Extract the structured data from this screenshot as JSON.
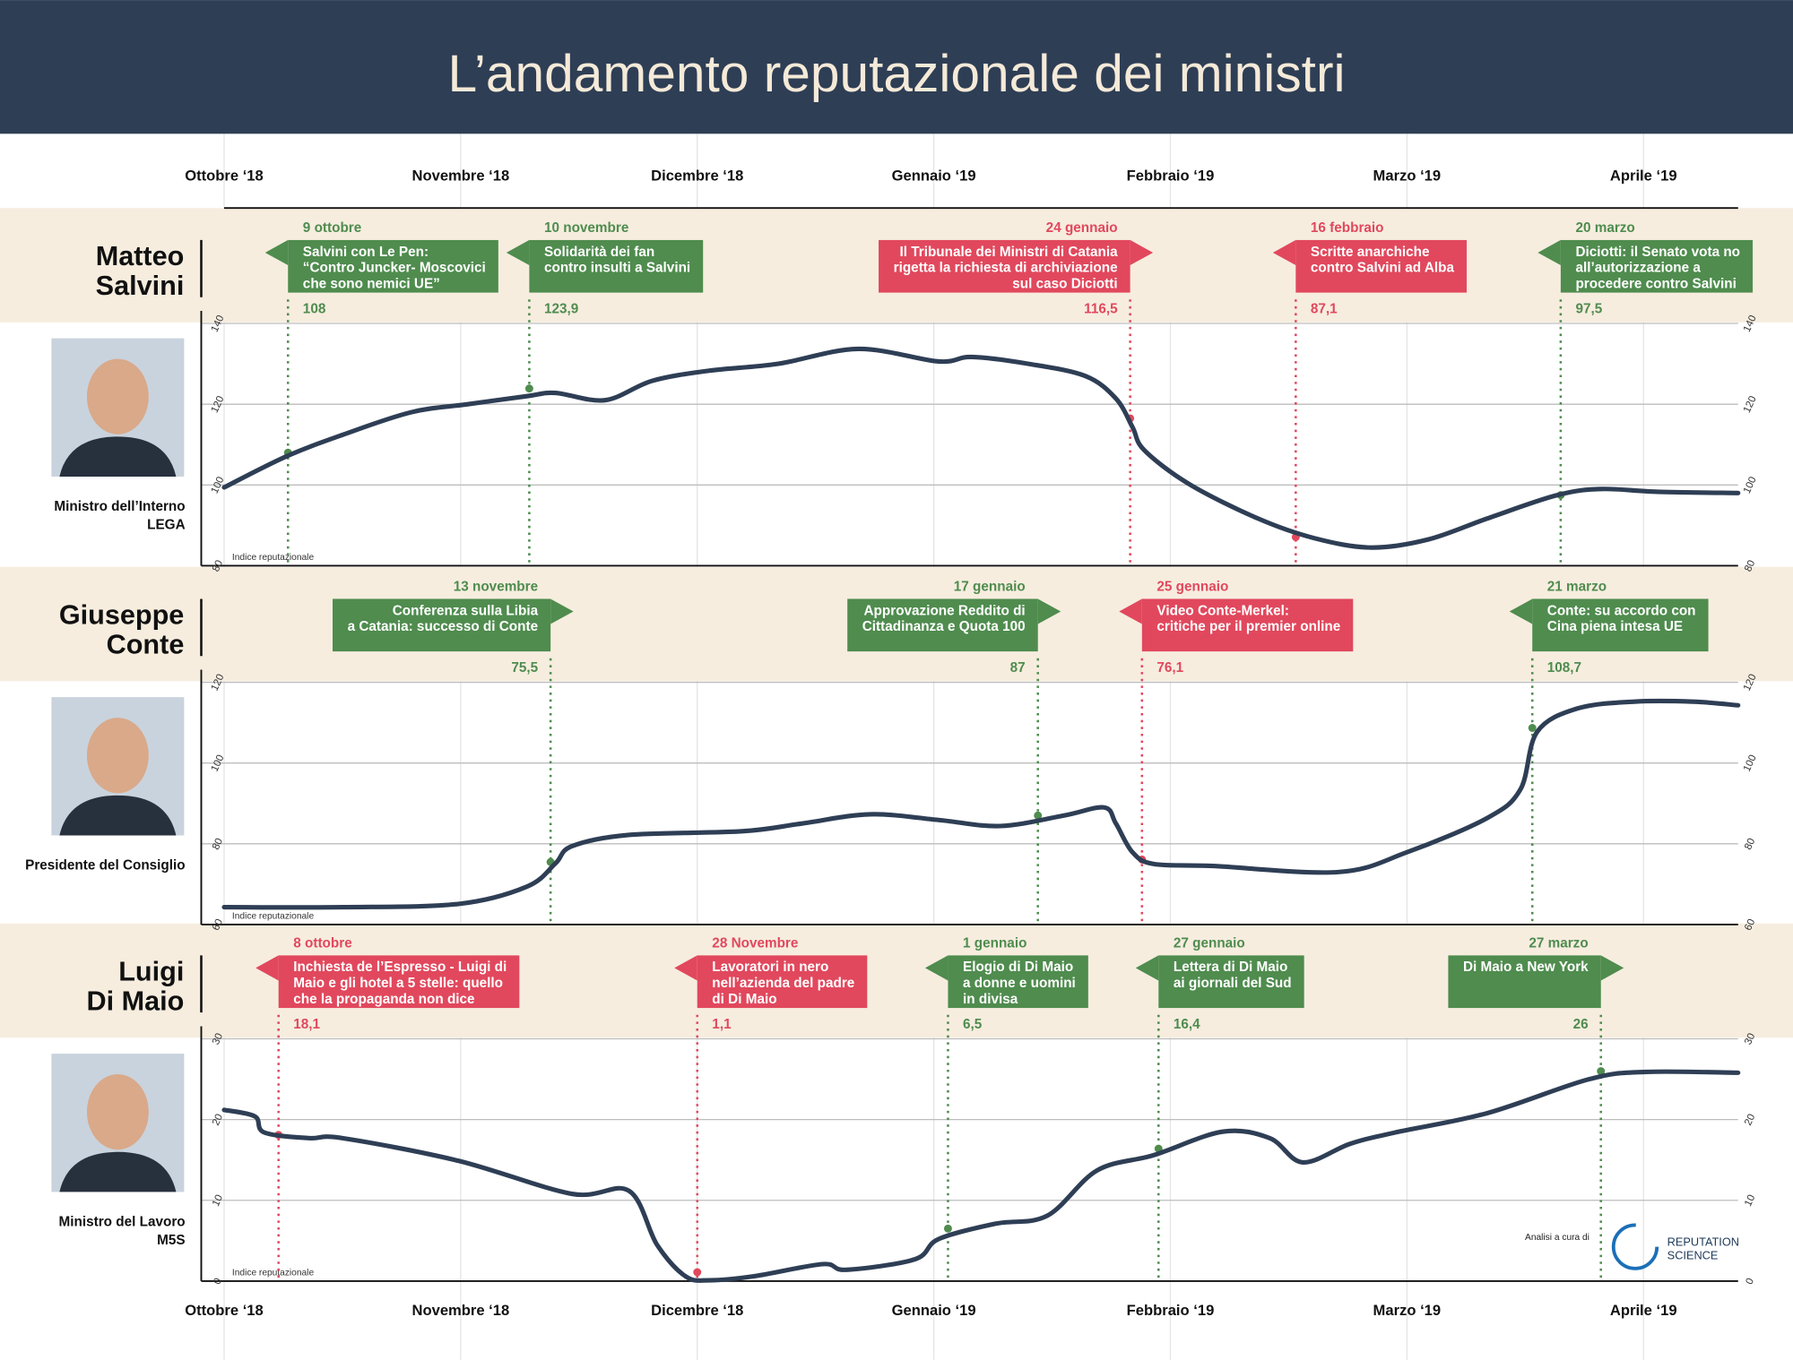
{
  "title": "L’andamento reputazionale dei ministri",
  "credit": "Analisi a cura di",
  "logo": [
    "REPUTATION",
    "SCIENCE"
  ],
  "chart_data": [
    {
      "type": "line",
      "title": [
        "Matteo",
        "Salvini"
      ],
      "subtitle": [
        "Ministro dell’Interno",
        "LEGA"
      ],
      "ylabel": "Indice reputazionale",
      "color": "#2e3e55",
      "x": [
        0,
        0.26,
        0.5,
        0.79,
        1.03,
        1.28,
        1.4,
        1.61,
        1.81,
        2.05,
        2.34,
        2.68,
        3.02,
        3.16,
        3.4,
        3.64,
        3.77,
        3.84,
        3.89,
        4.08,
        4.37,
        4.61,
        4.85,
        5.09,
        5.34,
        5.63,
        5.82,
        6.06,
        6.4
      ],
      "values": [
        99.4,
        107,
        112.4,
        118,
        120,
        122,
        122.8,
        121,
        125.8,
        128.3,
        130,
        133.7,
        130.6,
        131.7,
        130,
        127,
        121.4,
        114.3,
        108.6,
        100.2,
        91.7,
        86.8,
        84.5,
        86.5,
        91.7,
        97.4,
        99,
        98.3,
        98
      ],
      "xlim": [
        0,
        6.4
      ],
      "xticks": [
        {
          "value": 0,
          "label": "Ottobre ‘18"
        },
        {
          "value": 1,
          "label": "Novembre ‘18"
        },
        {
          "value": 2,
          "label": "Dicembre ‘18"
        },
        {
          "value": 3,
          "label": "Gennaio ‘19"
        },
        {
          "value": 4,
          "label": "Febbraio ‘19"
        },
        {
          "value": 5,
          "label": "Marzo ‘19"
        },
        {
          "value": 6,
          "label": "Aprile ‘19"
        }
      ],
      "ylim": [
        80,
        140
      ],
      "yticks": [
        80,
        100,
        120,
        140
      ],
      "grid": true,
      "annotations": [
        {
          "date": "9 ottobre",
          "text": [
            "Salvini con Le Pen:",
            "“Contro Juncker- Moscovici",
            "che sono nemici UE”"
          ],
          "x": 0.27,
          "value": 108,
          "color": "#4f8c4e",
          "align": "right"
        },
        {
          "date": "10 novembre",
          "text": [
            "Solidarità dei fan",
            "contro insulti a Salvini"
          ],
          "x": 1.29,
          "value": 123.9,
          "value_label": "123,9",
          "color": "#4f8c4e",
          "align": "right"
        },
        {
          "date": "24 gennaio",
          "text": [
            "Il Tribunale dei Ministri di Catania",
            "rigetta la richiesta di archiviazione",
            "sul caso Diciotti"
          ],
          "x": 3.83,
          "value": 116.5,
          "value_label": "116,5",
          "color": "#e1485d",
          "align": "left"
        },
        {
          "date": "16 febbraio",
          "text": [
            "Scritte anarchiche",
            "contro Salvini ad Alba"
          ],
          "x": 4.53,
          "value": 87.1,
          "value_label": "87,1",
          "color": "#e1485d",
          "align": "right"
        },
        {
          "date": "20 marzo",
          "text": [
            "Diciotti: il Senato vota no",
            "all’autorizzazione a",
            "procedere contro Salvini"
          ],
          "x": 5.65,
          "value": 97.5,
          "value_label": "97,5",
          "color": "#4f8c4e",
          "align": "right"
        }
      ]
    },
    {
      "type": "line",
      "title": [
        "Giuseppe",
        "Conte"
      ],
      "subtitle": [
        "Presidente del Consiglio"
      ],
      "ylabel": "Indice reputazionale",
      "color": "#2e3e55",
      "x": [
        0,
        0.5,
        0.99,
        1.28,
        1.4,
        1.47,
        1.71,
        2.19,
        2.44,
        2.73,
        3.02,
        3.28,
        3.55,
        3.72,
        3.77,
        3.84,
        3.93,
        4.18,
        4.71,
        5.0,
        5.34,
        5.48,
        5.55,
        5.72,
        5.96,
        6.21,
        6.4
      ],
      "values": [
        64.3,
        64.3,
        65.1,
        69.4,
        75.1,
        79.4,
        82.2,
        83.1,
        85,
        87.3,
        85.9,
        84.4,
        87,
        89,
        85,
        77.9,
        75,
        74.5,
        73,
        77.9,
        86.4,
        93.5,
        107.7,
        113.5,
        115.2,
        115.2,
        114.3
      ],
      "xlim": [
        0,
        6.4
      ],
      "ylim": [
        60,
        120
      ],
      "yticks": [
        60,
        80,
        100,
        120
      ],
      "grid": true,
      "annotations": [
        {
          "date": "13 novembre",
          "text": [
            "Conferenza sulla Libia",
            "a Catania: successo di Conte"
          ],
          "x": 1.38,
          "value": 75.5,
          "value_label": "75,5",
          "color": "#4f8c4e",
          "align": "left"
        },
        {
          "date": "17 gennaio",
          "text": [
            "Approvazione Reddito di",
            "Cittadinanza e Quota 100"
          ],
          "x": 3.44,
          "value": 87,
          "color": "#4f8c4e",
          "align": "left"
        },
        {
          "date": "25 gennaio",
          "text": [
            "Video Conte-Merkel:",
            "critiche per il premier online"
          ],
          "x": 3.88,
          "value": 76.1,
          "value_label": "76,1",
          "color": "#e1485d",
          "align": "right"
        },
        {
          "date": "21 marzo",
          "text": [
            "Conte: su accordo con",
            "Cina piena intesa UE"
          ],
          "x": 5.53,
          "value": 108.7,
          "value_label": "108,7",
          "color": "#4f8c4e",
          "align": "right"
        }
      ]
    },
    {
      "type": "line",
      "title": [
        "Luigi",
        "Di Maio"
      ],
      "subtitle": [
        "Ministro del Lavoro",
        "M5S"
      ],
      "ylabel": "Indice reputazionale",
      "color": "#2e3e55",
      "x": [
        0,
        0.13,
        0.17,
        0.36,
        0.5,
        0.99,
        1.47,
        1.71,
        1.83,
        1.95,
        2.05,
        2.24,
        2.53,
        2.63,
        2.92,
        3.02,
        3.26,
        3.48,
        3.69,
        3.93,
        4.22,
        4.42,
        4.56,
        4.76,
        4.95,
        5.34,
        5.77,
        6.01,
        6.4
      ],
      "values": [
        21.2,
        20.4,
        18.4,
        17.7,
        17.7,
        14.9,
        10.8,
        11.2,
        4.5,
        0.6,
        0.1,
        0.6,
        2.1,
        1.4,
        2.7,
        5.2,
        7.1,
        8.1,
        13.7,
        15.6,
        18.5,
        17.7,
        14.7,
        17,
        18.4,
        20.8,
        25,
        25.9,
        25.8
      ],
      "xlim": [
        0,
        6.4
      ],
      "xticks": [
        {
          "value": 0,
          "label": "Ottobre ‘18"
        },
        {
          "value": 1,
          "label": "Novembre ‘18"
        },
        {
          "value": 2,
          "label": "Dicembre ‘18"
        },
        {
          "value": 3,
          "label": "Gennaio ‘19"
        },
        {
          "value": 4,
          "label": "Febbraio ‘19"
        },
        {
          "value": 5,
          "label": "Marzo ‘19"
        },
        {
          "value": 6,
          "label": "Aprile ‘19"
        }
      ],
      "ylim": [
        0,
        30
      ],
      "yticks": [
        0,
        10,
        20,
        30
      ],
      "grid": true,
      "annotations": [
        {
          "date": "8 ottobre",
          "text": [
            "Inchiesta de l’Espresso - Luigi di",
            "Maio e gli hotel a 5 stelle: quello",
            "che la propaganda non dice"
          ],
          "x": 0.23,
          "value": 18.1,
          "value_label": "18,1",
          "color": "#e1485d",
          "align": "right"
        },
        {
          "date": "28 Novembre",
          "text": [
            "Lavoratori in nero",
            "nell’azienda del padre",
            "di Di Maio"
          ],
          "x": 2.0,
          "value": 1.1,
          "value_label": "1,1",
          "color": "#e1485d",
          "align": "right"
        },
        {
          "date": "1 gennaio",
          "text": [
            "Elogio di Di Maio",
            "a donne e uomini",
            "in divisa"
          ],
          "x": 3.06,
          "value": 6.5,
          "value_label": "6,5",
          "color": "#4f8c4e",
          "align": "right"
        },
        {
          "date": "27 gennaio",
          "text": [
            "Lettera di Di Maio",
            "ai giornali del Sud"
          ],
          "x": 3.95,
          "value": 16.4,
          "value_label": "16,4",
          "color": "#4f8c4e",
          "align": "right"
        },
        {
          "date": "27 marzo",
          "text": [
            "Di Maio a New York"
          ],
          "x": 5.82,
          "value": 26,
          "color": "#4f8c4e",
          "align": "left"
        }
      ]
    }
  ]
}
